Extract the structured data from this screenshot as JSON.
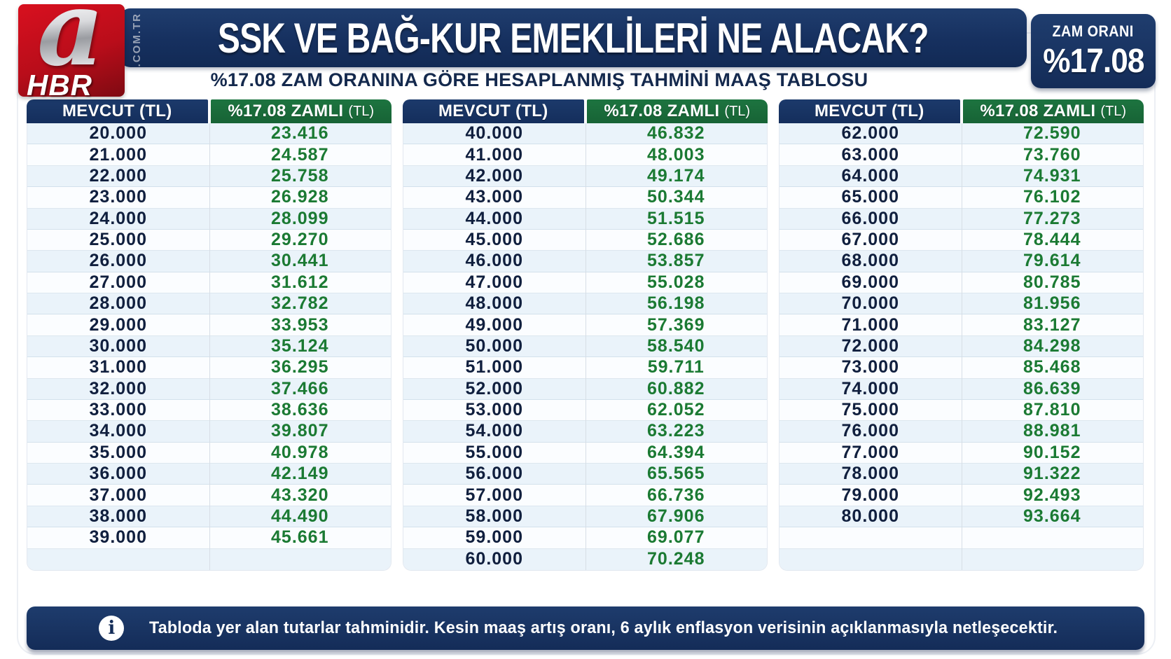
{
  "logo": {
    "letter": "a",
    "text": "HBR",
    "domain": ".COM.TR"
  },
  "header": {
    "title": "SSK VE BAĞ-KUR EMEKLİLERİ NE ALACAK?",
    "subtitle": "%17.08 ZAM ORANINA GÖRE HESAPLANMIŞ TAHMİNİ MAAŞ TABLOSU",
    "badge_label": "ZAM ORANI",
    "badge_value": "%17.08"
  },
  "columns": {
    "current": "MEVCUT (TL)",
    "raised": "%17.08 ZAMLI",
    "raised_unit": "(TL)"
  },
  "footer": {
    "icon_glyph": "i",
    "note": "Tabloda yer alan tutarlar tahminidir. Kesin maaş artış oranı, 6 aylık enflasyon verisinin açıklanmasıyla netleşecektir."
  },
  "colors": {
    "navy": "#16305f",
    "green_header": "#1a6b38",
    "value_green": "#1b7a33",
    "value_navy": "#101f3e",
    "row_alt_blue": "#eaf3fa",
    "logo_red": "#b90d1a"
  },
  "chart_data": {
    "type": "table",
    "title": "SSK VE BAĞ-KUR EMEKLİLERİ NE ALACAK?",
    "subtitle": "%17.08 ZAM ORANINA GÖRE HESAPLANMIŞ TAHMİNİ MAAŞ TABLOSU",
    "raise_rate_percent": 17.08,
    "columns": [
      "MEVCUT (TL)",
      "%17.08 ZAMLI (TL)"
    ],
    "tables": [
      {
        "rows": [
          [
            "20.000",
            "23.416"
          ],
          [
            "21.000",
            "24.587"
          ],
          [
            "22.000",
            "25.758"
          ],
          [
            "23.000",
            "26.928"
          ],
          [
            "24.000",
            "28.099"
          ],
          [
            "25.000",
            "29.270"
          ],
          [
            "26.000",
            "30.441"
          ],
          [
            "27.000",
            "31.612"
          ],
          [
            "28.000",
            "32.782"
          ],
          [
            "29.000",
            "33.953"
          ],
          [
            "30.000",
            "35.124"
          ],
          [
            "31.000",
            "36.295"
          ],
          [
            "32.000",
            "37.466"
          ],
          [
            "33.000",
            "38.636"
          ],
          [
            "34.000",
            "39.807"
          ],
          [
            "35.000",
            "40.978"
          ],
          [
            "36.000",
            "42.149"
          ],
          [
            "37.000",
            "43.320"
          ],
          [
            "38.000",
            "44.490"
          ],
          [
            "39.000",
            "45.661"
          ],
          [
            "",
            ""
          ]
        ]
      },
      {
        "rows": [
          [
            "40.000",
            "46.832"
          ],
          [
            "41.000",
            "48.003"
          ],
          [
            "42.000",
            "49.174"
          ],
          [
            "43.000",
            "50.344"
          ],
          [
            "44.000",
            "51.515"
          ],
          [
            "45.000",
            "52.686"
          ],
          [
            "46.000",
            "53.857"
          ],
          [
            "47.000",
            "55.028"
          ],
          [
            "48.000",
            "56.198"
          ],
          [
            "49.000",
            "57.369"
          ],
          [
            "50.000",
            "58.540"
          ],
          [
            "51.000",
            "59.711"
          ],
          [
            "52.000",
            "60.882"
          ],
          [
            "53.000",
            "62.052"
          ],
          [
            "54.000",
            "63.223"
          ],
          [
            "55.000",
            "64.394"
          ],
          [
            "56.000",
            "65.565"
          ],
          [
            "57.000",
            "66.736"
          ],
          [
            "58.000",
            "67.906"
          ],
          [
            "59.000",
            "69.077"
          ],
          [
            "60.000",
            "70.248"
          ]
        ]
      },
      {
        "rows": [
          [
            "62.000",
            "72.590"
          ],
          [
            "63.000",
            "73.760"
          ],
          [
            "64.000",
            "74.931"
          ],
          [
            "65.000",
            "76.102"
          ],
          [
            "66.000",
            "77.273"
          ],
          [
            "67.000",
            "78.444"
          ],
          [
            "68.000",
            "79.614"
          ],
          [
            "69.000",
            "80.785"
          ],
          [
            "70.000",
            "81.956"
          ],
          [
            "71.000",
            "83.127"
          ],
          [
            "72.000",
            "84.298"
          ],
          [
            "73.000",
            "85.468"
          ],
          [
            "74.000",
            "86.639"
          ],
          [
            "75.000",
            "87.810"
          ],
          [
            "76.000",
            "88.981"
          ],
          [
            "77.000",
            "90.152"
          ],
          [
            "78.000",
            "91.322"
          ],
          [
            "79.000",
            "92.493"
          ],
          [
            "80.000",
            "93.664"
          ],
          [
            "",
            ""
          ],
          [
            "",
            ""
          ]
        ]
      }
    ]
  }
}
